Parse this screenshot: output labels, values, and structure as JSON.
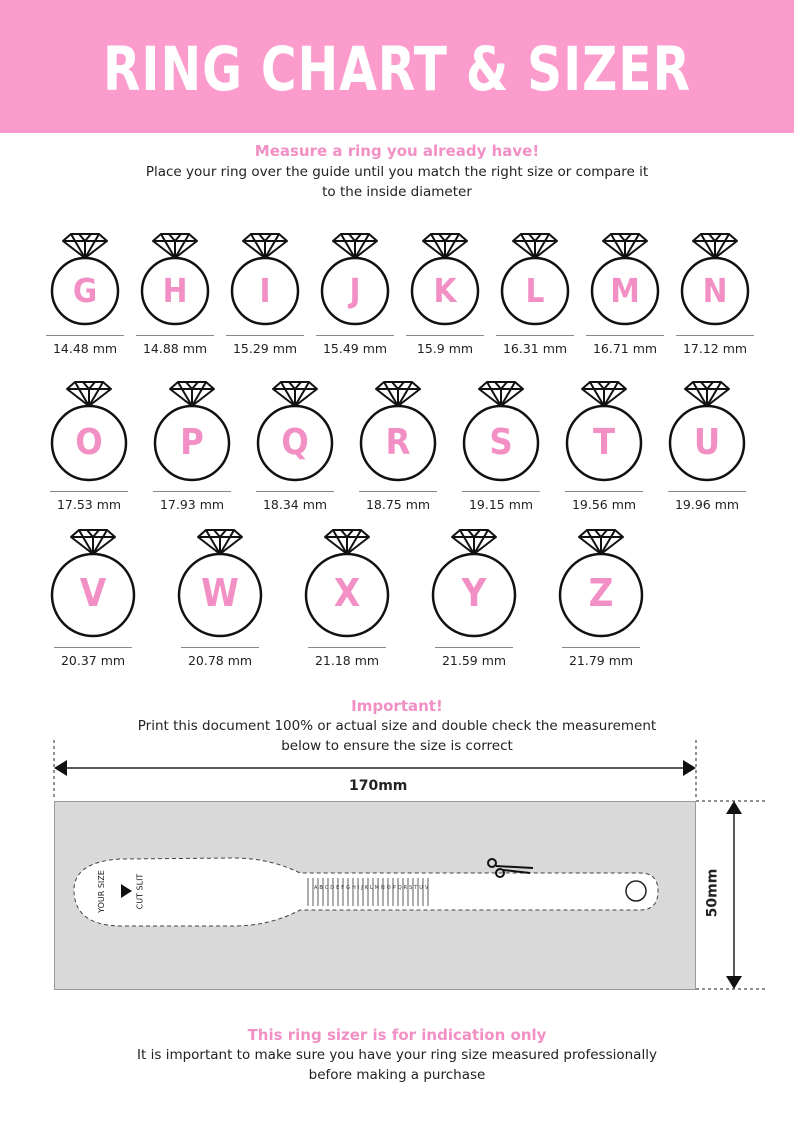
{
  "header": {
    "title": "RING CHART & SIZER"
  },
  "intro": {
    "heading": "Measure a ring you already have!",
    "line1": "Place your ring over the guide until you match the right size or compare it",
    "line2": "to the inside diameter"
  },
  "rings": [
    {
      "letter": "G",
      "mm": "14.48 mm"
    },
    {
      "letter": "H",
      "mm": "14.88 mm"
    },
    {
      "letter": "I",
      "mm": "15.29 mm"
    },
    {
      "letter": "J",
      "mm": "15.49 mm"
    },
    {
      "letter": "K",
      "mm": "15.9 mm"
    },
    {
      "letter": "L",
      "mm": "16.31 mm"
    },
    {
      "letter": "M",
      "mm": "16.71 mm"
    },
    {
      "letter": "N",
      "mm": "17.12 mm"
    },
    {
      "letter": "O",
      "mm": "17.53 mm"
    },
    {
      "letter": "P",
      "mm": "17.93 mm"
    },
    {
      "letter": "Q",
      "mm": "18.34 mm"
    },
    {
      "letter": "R",
      "mm": "18.75 mm"
    },
    {
      "letter": "S",
      "mm": "19.15 mm"
    },
    {
      "letter": "T",
      "mm": "19.56 mm"
    },
    {
      "letter": "U",
      "mm": "19.96 mm"
    },
    {
      "letter": "V",
      "mm": "20.37 mm"
    },
    {
      "letter": "W",
      "mm": "20.78 mm"
    },
    {
      "letter": "X",
      "mm": "21.18 mm"
    },
    {
      "letter": "Y",
      "mm": "21.59 mm"
    },
    {
      "letter": "Z",
      "mm": "21.79 mm"
    }
  ],
  "important": {
    "heading": "Important!",
    "line1": "Print this document 100% or actual size and double check the measurement",
    "line2": "below to ensure the size is correct"
  },
  "sizer": {
    "width_label": "170mm",
    "height_label": "50mm",
    "your_size": "YOUR SIZE",
    "cut_slit": "CUT SLIT",
    "scale_letters": "A B C D E F G H I J K L M N O P Q R S T U V W X Y Z"
  },
  "footer": {
    "heading": "This ring sizer is for indication only",
    "line1": "It is important to make sure you have your ring size measured professionally",
    "line2": "before making a purchase"
  },
  "colors": {
    "banner": "#fc9ccd",
    "accent": "#f28fc4",
    "box": "#d9d9d9"
  },
  "icons": [
    "diamond-ring-icon",
    "scissors-icon",
    "arrow-head-icon"
  ]
}
